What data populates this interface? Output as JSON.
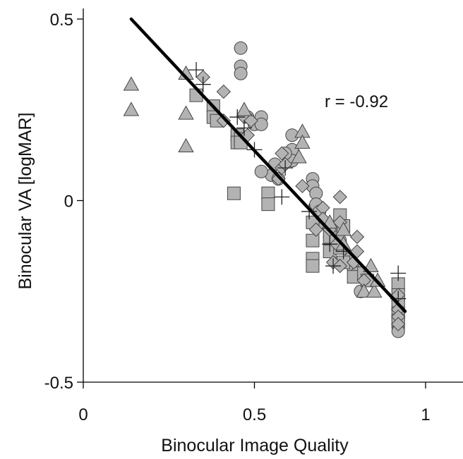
{
  "chart_data": {
    "type": "scatter",
    "title": "",
    "xlabel": "Binocular Image Quality",
    "ylabel": "Binocular VA [logMAR]",
    "xlim": [
      0,
      1.1
    ],
    "ylim": [
      -0.5,
      0.5
    ],
    "x_ticks": [
      0,
      0.5,
      1
    ],
    "x_tick_labels": [
      "0",
      "0.5",
      "1"
    ],
    "y_ticks": [
      -0.5,
      0,
      0.5
    ],
    "y_tick_labels": [
      "-0.5",
      "0",
      "0.5"
    ],
    "grid": false,
    "legend": "none",
    "annotation": "r = -0.92",
    "colors": {
      "marker_fill": "#b3b3b3",
      "marker_edge": "#444444",
      "line": "#000000",
      "axis": "#000000"
    },
    "regression_line": {
      "x": [
        0.14,
        0.94
      ],
      "y": [
        0.5,
        -0.305
      ]
    },
    "series": [
      {
        "marker": "circle",
        "points": [
          [
            0.46,
            0.42
          ],
          [
            0.46,
            0.37
          ],
          [
            0.46,
            0.35
          ],
          [
            0.48,
            0.23
          ],
          [
            0.5,
            0.21
          ],
          [
            0.52,
            0.23
          ],
          [
            0.52,
            0.21
          ],
          [
            0.61,
            0.18
          ],
          [
            0.61,
            0.14
          ],
          [
            0.61,
            0.11
          ],
          [
            0.59,
            0.13
          ],
          [
            0.56,
            0.1
          ],
          [
            0.55,
            0.07
          ],
          [
            0.52,
            0.08
          ],
          [
            0.57,
            0.06
          ],
          [
            0.67,
            0.06
          ],
          [
            0.67,
            0.04
          ],
          [
            0.68,
            0.02
          ],
          [
            0.68,
            -0.01
          ],
          [
            0.69,
            -0.03
          ],
          [
            0.7,
            -0.06
          ],
          [
            0.72,
            -0.1
          ],
          [
            0.75,
            -0.11
          ],
          [
            0.78,
            -0.16
          ],
          [
            0.79,
            -0.19
          ],
          [
            0.8,
            -0.2
          ],
          [
            0.81,
            -0.25
          ],
          [
            0.92,
            -0.3
          ],
          [
            0.92,
            -0.33
          ],
          [
            0.92,
            -0.35
          ],
          [
            0.92,
            -0.36
          ]
        ]
      },
      {
        "marker": "square",
        "points": [
          [
            0.33,
            0.29
          ],
          [
            0.38,
            0.26
          ],
          [
            0.38,
            0.23
          ],
          [
            0.39,
            0.22
          ],
          [
            0.45,
            0.18
          ],
          [
            0.45,
            0.16
          ],
          [
            0.46,
            0.17
          ],
          [
            0.46,
            0.16
          ],
          [
            0.44,
            0.02
          ],
          [
            0.54,
            0.02
          ],
          [
            0.54,
            -0.01
          ],
          [
            0.67,
            -0.06
          ],
          [
            0.67,
            -0.11
          ],
          [
            0.67,
            -0.16
          ],
          [
            0.67,
            -0.18
          ],
          [
            0.72,
            -0.1
          ],
          [
            0.72,
            -0.14
          ],
          [
            0.75,
            -0.04
          ],
          [
            0.76,
            -0.07
          ],
          [
            0.75,
            -0.13
          ],
          [
            0.76,
            -0.17
          ],
          [
            0.79,
            -0.21
          ],
          [
            0.82,
            -0.2
          ],
          [
            0.83,
            -0.22
          ],
          [
            0.92,
            -0.23
          ],
          [
            0.92,
            -0.26
          ],
          [
            0.92,
            -0.28
          ],
          [
            0.92,
            -0.31
          ],
          [
            0.92,
            -0.33
          ]
        ]
      },
      {
        "marker": "diamond",
        "points": [
          [
            0.35,
            0.34
          ],
          [
            0.41,
            0.3
          ],
          [
            0.41,
            0.22
          ],
          [
            0.47,
            0.23
          ],
          [
            0.49,
            0.22
          ],
          [
            0.48,
            0.18
          ],
          [
            0.58,
            0.13
          ],
          [
            0.58,
            0.09
          ],
          [
            0.59,
            0.1
          ],
          [
            0.57,
            0.06
          ],
          [
            0.64,
            0.04
          ],
          [
            0.7,
            -0.02
          ],
          [
            0.7,
            -0.05
          ],
          [
            0.72,
            -0.08
          ],
          [
            0.68,
            -0.08
          ],
          [
            0.75,
            0.01
          ],
          [
            0.75,
            -0.06
          ],
          [
            0.74,
            -0.12
          ],
          [
            0.73,
            -0.17
          ],
          [
            0.75,
            -0.18
          ],
          [
            0.79,
            -0.17
          ],
          [
            0.8,
            -0.14
          ],
          [
            0.8,
            -0.1
          ],
          [
            0.82,
            -0.22
          ],
          [
            0.92,
            -0.26
          ],
          [
            0.92,
            -0.3
          ],
          [
            0.92,
            -0.32
          ],
          [
            0.92,
            -0.34
          ]
        ]
      },
      {
        "marker": "triangle",
        "points": [
          [
            0.14,
            0.32
          ],
          [
            0.14,
            0.25
          ],
          [
            0.3,
            0.35
          ],
          [
            0.3,
            0.24
          ],
          [
            0.3,
            0.15
          ],
          [
            0.47,
            0.25
          ],
          [
            0.64,
            0.19
          ],
          [
            0.64,
            0.16
          ],
          [
            0.63,
            0.12
          ],
          [
            0.72,
            -0.06
          ],
          [
            0.76,
            -0.08
          ],
          [
            0.76,
            -0.12
          ],
          [
            0.84,
            -0.18
          ],
          [
            0.82,
            -0.25
          ],
          [
            0.85,
            -0.25
          ],
          [
            0.86,
            -0.22
          ]
        ]
      },
      {
        "marker": "plus",
        "points": [
          [
            0.33,
            0.36
          ],
          [
            0.35,
            0.32
          ],
          [
            0.45,
            0.23
          ],
          [
            0.47,
            0.2
          ],
          [
            0.5,
            0.14
          ],
          [
            0.59,
            0.09
          ],
          [
            0.58,
            0.01
          ],
          [
            0.66,
            -0.03
          ],
          [
            0.72,
            -0.12
          ],
          [
            0.73,
            -0.18
          ],
          [
            0.76,
            -0.14
          ],
          [
            0.92,
            -0.2
          ],
          [
            0.92,
            -0.27
          ]
        ]
      }
    ]
  }
}
